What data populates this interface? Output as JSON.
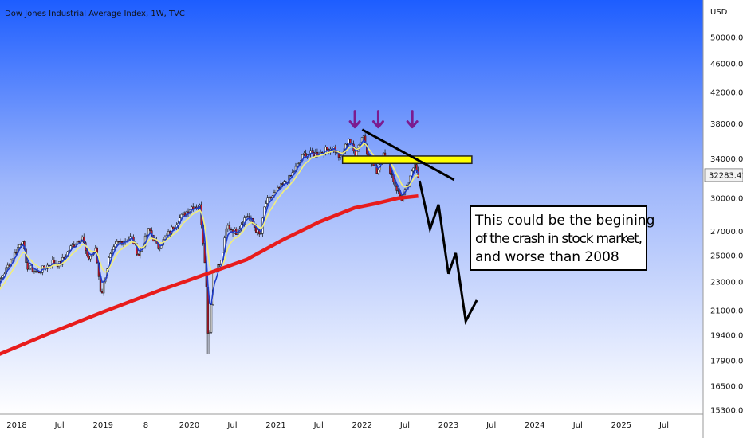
{
  "chart_data": {
    "type": "candlestick",
    "title": "Dow Jones Industrial Average Index, 1W, TVC",
    "currency": "USD",
    "y_scale": "log",
    "ylim": [
      15300,
      52000
    ],
    "y_ticks": [
      {
        "label": "50000.00",
        "value": 50000
      },
      {
        "label": "46000.00",
        "value": 46000
      },
      {
        "label": "42000.00",
        "value": 42000
      },
      {
        "label": "38000.00",
        "value": 38000
      },
      {
        "label": "34000.00",
        "value": 34000
      },
      {
        "label": "30000.00",
        "value": 30000
      },
      {
        "label": "27000.00",
        "value": 27000
      },
      {
        "label": "25000.00",
        "value": 25000
      },
      {
        "label": "23000.00",
        "value": 23000
      },
      {
        "label": "21000.00",
        "value": 21000
      },
      {
        "label": "19400.00",
        "value": 19400
      },
      {
        "label": "17900.00",
        "value": 17900
      },
      {
        "label": "16500.00",
        "value": 16500
      },
      {
        "label": "15300.00",
        "value": 15300
      }
    ],
    "last_price_label": "32283.41",
    "last_price": 32283.41,
    "x_ticks": [
      {
        "label": "2018",
        "date": "2018-01-01"
      },
      {
        "label": "Jul",
        "date": "2018-07-01"
      },
      {
        "label": "2019",
        "date": "2019-01-01"
      },
      {
        "label": "8",
        "date": "2019-07-01"
      },
      {
        "label": "2020",
        "date": "2020-01-01"
      },
      {
        "label": "Jul",
        "date": "2020-07-01"
      },
      {
        "label": "2021",
        "date": "2021-01-01"
      },
      {
        "label": "Jul",
        "date": "2021-07-01"
      },
      {
        "label": "2022",
        "date": "2022-01-01"
      },
      {
        "label": "Jul",
        "date": "2022-07-01"
      },
      {
        "label": "2023",
        "date": "2023-01-01"
      },
      {
        "label": "Jul",
        "date": "2023-07-01"
      },
      {
        "label": "2024",
        "date": "2024-01-01"
      },
      {
        "label": "Jul",
        "date": "2024-07-01"
      },
      {
        "label": "2025",
        "date": "2025-01-01"
      },
      {
        "label": "Jul",
        "date": "2025-07-01"
      }
    ],
    "price_path": [
      [
        "2017-09-01",
        21800
      ],
      [
        "2017-11-01",
        23400
      ],
      [
        "2018-01-26",
        26400
      ],
      [
        "2018-02-09",
        24200
      ],
      [
        "2018-04-01",
        23700
      ],
      [
        "2018-06-01",
        24500
      ],
      [
        "2018-07-01",
        24300
      ],
      [
        "2018-08-15",
        25600
      ],
      [
        "2018-10-05",
        26600
      ],
      [
        "2018-10-26",
        24700
      ],
      [
        "2018-12-01",
        25400
      ],
      [
        "2018-12-24",
        22000
      ],
      [
        "2019-01-25",
        24700
      ],
      [
        "2019-03-01",
        26000
      ],
      [
        "2019-05-01",
        26500
      ],
      [
        "2019-06-01",
        25000
      ],
      [
        "2019-07-15",
        27200
      ],
      [
        "2019-08-20",
        25600
      ],
      [
        "2019-10-01",
        26700
      ],
      [
        "2019-11-15",
        28000
      ],
      [
        "2020-01-15",
        29300
      ],
      [
        "2020-02-15",
        29200
      ],
      [
        "2020-03-10",
        23900
      ],
      [
        "2020-03-23",
        18600
      ],
      [
        "2020-04-10",
        23700
      ],
      [
        "2020-05-15",
        24500
      ],
      [
        "2020-06-08",
        27500
      ],
      [
        "2020-07-15",
        26900
      ],
      [
        "2020-09-01",
        28500
      ],
      [
        "2020-10-28",
        26500
      ],
      [
        "2020-11-15",
        29400
      ],
      [
        "2021-01-01",
        30600
      ],
      [
        "2021-03-01",
        32000
      ],
      [
        "2021-05-01",
        34500
      ],
      [
        "2021-07-01",
        34600
      ],
      [
        "2021-09-01",
        35300
      ],
      [
        "2021-10-01",
        34000
      ],
      [
        "2021-11-05",
        36300
      ],
      [
        "2021-12-01",
        34500
      ],
      [
        "2022-01-05",
        36800
      ],
      [
        "2022-01-28",
        34000
      ],
      [
        "2022-03-08",
        32600
      ],
      [
        "2022-04-01",
        35000
      ],
      [
        "2022-05-20",
        31250
      ],
      [
        "2022-06-17",
        29900
      ],
      [
        "2022-07-15",
        31300
      ],
      [
        "2022-08-12",
        33700
      ],
      [
        "2022-08-26",
        32283
      ]
    ],
    "series": [
      {
        "name": "",
        "color": "#1f3cc9",
        "kind": "short-ema"
      },
      {
        "name": "",
        "color": "#f2ef7a",
        "kind": "medium-ema"
      },
      {
        "name": "",
        "color": "#e81c1c",
        "kind": "long-ma",
        "points": [
          [
            "2017-09-01",
            18000
          ],
          [
            "2018-06-01",
            19600
          ],
          [
            "2019-01-01",
            20900
          ],
          [
            "2019-09-01",
            22400
          ],
          [
            "2020-04-01",
            23700
          ],
          [
            "2020-09-01",
            24700
          ],
          [
            "2021-02-01",
            26300
          ],
          [
            "2021-07-01",
            27800
          ],
          [
            "2021-12-01",
            29100
          ],
          [
            "2022-03-01",
            29500
          ],
          [
            "2022-06-01",
            30000
          ],
          [
            "2022-08-26",
            30200
          ]
        ]
      }
    ],
    "annotations": {
      "arrows_down": [
        [
          "2021-12-01",
          37600
        ],
        [
          "2022-03-10",
          37600
        ],
        [
          "2022-08-01",
          37600
        ]
      ],
      "resistance_zone": {
        "from": "2021-10-10",
        "to": "2023-04-10",
        "low": 33500,
        "high": 34300,
        "color": "#ffff00"
      },
      "trend_line": [
        [
          "2022-01-01",
          37300
        ],
        [
          "2023-01-25",
          31800
        ]
      ],
      "projection_path": [
        [
          "2022-09-01",
          31700
        ],
        [
          "2022-10-15",
          27200
        ],
        [
          "2022-11-20",
          29400
        ],
        [
          "2023-01-01",
          23600
        ],
        [
          "2023-02-01",
          25200
        ],
        [
          "2023-03-15",
          20300
        ],
        [
          "2023-05-01",
          21700
        ]
      ],
      "note_lines": [
        "This could be the begining",
        "of the crash in stock market,",
        "and worse than 2008"
      ]
    },
    "grid": false,
    "background": {
      "top": "#1e5cff",
      "bottom": "#ffffff"
    }
  }
}
